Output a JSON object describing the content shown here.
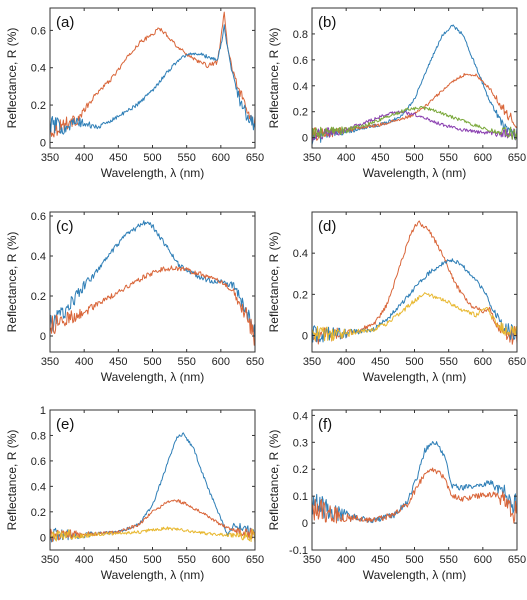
{
  "colors": {
    "blue": "#2f7fb7",
    "orange": "#d9663a",
    "purple": "#8a3fb0",
    "green": "#7aa83a",
    "yellow": "#e8b830"
  },
  "chart_data": [
    {
      "id": "a",
      "type": "line",
      "panel_label": "(a)",
      "xlabel": "Wavelength, λ (nm)",
      "ylabel": "Reflectance, R (%)",
      "xlim": [
        350,
        650
      ],
      "ylim": [
        -0.03,
        0.72
      ],
      "xticks": [
        350,
        400,
        450,
        500,
        550,
        600,
        650
      ],
      "yticks": [
        0,
        0.2,
        0.4,
        0.6
      ],
      "ytick_labels": [
        "0",
        "0.2",
        "0.4",
        "0.6"
      ],
      "noise_scale": 0.03,
      "series": [
        {
          "color": "orange",
          "x": [
            350,
            370,
            390,
            400,
            420,
            440,
            460,
            480,
            500,
            510,
            520,
            540,
            560,
            580,
            595,
            600,
            605,
            610,
            620,
            630,
            640,
            650
          ],
          "y": [
            0.06,
            0.1,
            0.12,
            0.17,
            0.27,
            0.34,
            0.44,
            0.53,
            0.58,
            0.61,
            0.58,
            0.5,
            0.45,
            0.41,
            0.43,
            0.55,
            0.7,
            0.5,
            0.35,
            0.25,
            0.15,
            0.1
          ]
        },
        {
          "color": "blue",
          "x": [
            350,
            370,
            390,
            400,
            420,
            440,
            460,
            480,
            500,
            520,
            540,
            560,
            580,
            595,
            600,
            605,
            610,
            620,
            630,
            640,
            650
          ],
          "y": [
            0.1,
            0.08,
            0.11,
            0.1,
            0.08,
            0.12,
            0.16,
            0.21,
            0.28,
            0.37,
            0.45,
            0.48,
            0.46,
            0.44,
            0.52,
            0.62,
            0.5,
            0.32,
            0.2,
            0.13,
            0.1
          ]
        }
      ]
    },
    {
      "id": "b",
      "type": "line",
      "panel_label": "(b)",
      "xlabel": "Wavelength, λ (nm)",
      "ylabel": "Reflectance, R (%)",
      "xlim": [
        350,
        650
      ],
      "ylim": [
        -0.08,
        1.0
      ],
      "xticks": [
        350,
        400,
        450,
        500,
        550,
        600,
        650
      ],
      "yticks": [
        0,
        0.2,
        0.4,
        0.6,
        0.8
      ],
      "ytick_labels": [
        "0",
        "0.2",
        "0.4",
        "0.6",
        "0.8"
      ],
      "noise_scale": 0.035,
      "series": [
        {
          "color": "blue",
          "x": [
            350,
            400,
            450,
            480,
            500,
            520,
            540,
            555,
            570,
            590,
            610,
            630,
            650
          ],
          "y": [
            0.0,
            0.05,
            0.1,
            0.16,
            0.3,
            0.55,
            0.78,
            0.87,
            0.8,
            0.55,
            0.28,
            0.1,
            0.03
          ]
        },
        {
          "color": "orange",
          "x": [
            350,
            400,
            450,
            480,
            500,
            520,
            540,
            560,
            575,
            590,
            610,
            630,
            650
          ],
          "y": [
            0.02,
            0.06,
            0.1,
            0.14,
            0.18,
            0.26,
            0.36,
            0.45,
            0.49,
            0.48,
            0.38,
            0.22,
            0.1
          ]
        },
        {
          "color": "purple",
          "x": [
            350,
            400,
            430,
            460,
            480,
            500,
            520,
            540,
            570,
            600,
            650
          ],
          "y": [
            0.02,
            0.06,
            0.12,
            0.18,
            0.2,
            0.18,
            0.14,
            0.1,
            0.06,
            0.04,
            0.02
          ]
        },
        {
          "color": "green",
          "x": [
            350,
            400,
            430,
            460,
            490,
            510,
            530,
            550,
            580,
            610,
            650
          ],
          "y": [
            0.03,
            0.06,
            0.1,
            0.16,
            0.22,
            0.23,
            0.21,
            0.17,
            0.11,
            0.06,
            0.03
          ]
        }
      ]
    },
    {
      "id": "c",
      "type": "line",
      "panel_label": "(c)",
      "xlabel": "Wavelength, λ (nm)",
      "ylabel": "Reflectance, R (%)",
      "xlim": [
        350,
        650
      ],
      "ylim": [
        -0.08,
        0.62
      ],
      "xticks": [
        350,
        400,
        450,
        500,
        550,
        600,
        650
      ],
      "yticks": [
        0,
        0.2,
        0.4,
        0.6
      ],
      "ytick_labels": [
        "0",
        "0.2",
        "0.4",
        "0.6"
      ],
      "noise_scale": 0.035,
      "series": [
        {
          "color": "blue",
          "x": [
            350,
            370,
            400,
            420,
            440,
            460,
            480,
            490,
            500,
            520,
            540,
            560,
            580,
            600,
            620,
            640,
            650
          ],
          "y": [
            0.05,
            0.12,
            0.25,
            0.33,
            0.42,
            0.5,
            0.55,
            0.57,
            0.55,
            0.45,
            0.35,
            0.31,
            0.28,
            0.27,
            0.25,
            0.1,
            0.0
          ]
        },
        {
          "color": "orange",
          "x": [
            350,
            370,
            400,
            430,
            460,
            490,
            510,
            530,
            550,
            570,
            600,
            620,
            640,
            650
          ],
          "y": [
            0.04,
            0.08,
            0.12,
            0.18,
            0.24,
            0.3,
            0.33,
            0.34,
            0.33,
            0.31,
            0.27,
            0.22,
            0.08,
            0.0
          ]
        }
      ]
    },
    {
      "id": "d",
      "type": "line",
      "panel_label": "(d)",
      "xlabel": "Wavelength, λ (nm)",
      "ylabel": "Reflectance, R (%)",
      "xlim": [
        350,
        650
      ],
      "ylim": [
        -0.08,
        0.6
      ],
      "xticks": [
        350,
        400,
        450,
        500,
        550,
        600,
        650
      ],
      "yticks": [
        0,
        0.2,
        0.4
      ],
      "ytick_labels": [
        "0",
        "0.2",
        "0.4"
      ],
      "noise_scale": 0.03,
      "series": [
        {
          "color": "orange",
          "x": [
            350,
            400,
            440,
            460,
            480,
            495,
            505,
            520,
            540,
            560,
            580,
            600,
            610,
            620,
            640,
            650
          ],
          "y": [
            0.0,
            0.01,
            0.05,
            0.15,
            0.35,
            0.5,
            0.55,
            0.52,
            0.4,
            0.25,
            0.15,
            0.12,
            0.13,
            0.05,
            0.0,
            0.0
          ]
        },
        {
          "color": "blue",
          "x": [
            350,
            400,
            440,
            460,
            480,
            500,
            520,
            540,
            555,
            570,
            590,
            605,
            615,
            630,
            650
          ],
          "y": [
            0.0,
            0.01,
            0.03,
            0.08,
            0.15,
            0.23,
            0.3,
            0.35,
            0.37,
            0.34,
            0.27,
            0.2,
            0.12,
            0.04,
            0.0
          ]
        },
        {
          "color": "yellow",
          "x": [
            350,
            400,
            440,
            460,
            480,
            500,
            515,
            530,
            550,
            570,
            590,
            605,
            615,
            630,
            650
          ],
          "y": [
            0.0,
            0.01,
            0.03,
            0.06,
            0.11,
            0.17,
            0.2,
            0.19,
            0.16,
            0.12,
            0.1,
            0.14,
            0.08,
            0.03,
            0.0
          ]
        }
      ]
    },
    {
      "id": "e",
      "type": "line",
      "panel_label": "(e)",
      "xlabel": "Wavelength, λ (nm)",
      "ylabel": "Reflectance, R (%)",
      "xlim": [
        350,
        650
      ],
      "ylim": [
        -0.1,
        1.0
      ],
      "xticks": [
        350,
        400,
        450,
        500,
        550,
        600,
        650
      ],
      "yticks": [
        0,
        0.2,
        0.4,
        0.6,
        0.8,
        1
      ],
      "ytick_labels": [
        "0",
        "0.2",
        "0.4",
        "0.6",
        "0.8",
        "1"
      ],
      "noise_scale": 0.035,
      "series": [
        {
          "color": "blue",
          "x": [
            350,
            400,
            450,
            480,
            500,
            520,
            535,
            545,
            560,
            580,
            600,
            610,
            620,
            640,
            650
          ],
          "y": [
            0.02,
            0.02,
            0.04,
            0.1,
            0.25,
            0.55,
            0.78,
            0.81,
            0.7,
            0.4,
            0.15,
            0.02,
            0.1,
            0.05,
            0.02
          ]
        },
        {
          "color": "orange",
          "x": [
            350,
            400,
            450,
            480,
            500,
            520,
            535,
            550,
            570,
            600,
            620,
            650
          ],
          "y": [
            0.02,
            0.02,
            0.04,
            0.1,
            0.2,
            0.27,
            0.29,
            0.26,
            0.2,
            0.1,
            0.05,
            0.02
          ]
        },
        {
          "color": "yellow",
          "x": [
            350,
            400,
            450,
            480,
            500,
            520,
            540,
            560,
            600,
            650
          ],
          "y": [
            0.02,
            0.02,
            0.03,
            0.04,
            0.06,
            0.07,
            0.06,
            0.04,
            0.02,
            0.01
          ]
        }
      ]
    },
    {
      "id": "f",
      "type": "line",
      "panel_label": "(f)",
      "xlabel": "Wavelength, λ (nm)",
      "ylabel": "Reflectance, R (%)",
      "xlim": [
        350,
        650
      ],
      "ylim": [
        -0.1,
        0.42
      ],
      "xticks": [
        350,
        400,
        450,
        500,
        550,
        600,
        650
      ],
      "yticks": [
        -0.1,
        0,
        0.1,
        0.2,
        0.3,
        0.4
      ],
      "ytick_labels": [
        "-0.1",
        "0",
        "0.1",
        "0.2",
        "0.3",
        "0.4"
      ],
      "noise_scale": 0.03,
      "series": [
        {
          "color": "blue",
          "x": [
            350,
            380,
            410,
            440,
            470,
            490,
            505,
            515,
            525,
            535,
            545,
            555,
            570,
            590,
            610,
            630,
            645,
            650
          ],
          "y": [
            0.08,
            0.04,
            0.02,
            0.01,
            0.03,
            0.08,
            0.18,
            0.27,
            0.3,
            0.29,
            0.24,
            0.14,
            0.13,
            0.14,
            0.15,
            0.12,
            0.05,
            0.08
          ]
        },
        {
          "color": "orange",
          "x": [
            350,
            380,
            410,
            440,
            470,
            490,
            505,
            515,
            525,
            535,
            545,
            555,
            570,
            590,
            610,
            630,
            645,
            650
          ],
          "y": [
            0.06,
            0.03,
            0.02,
            0.01,
            0.03,
            0.07,
            0.14,
            0.18,
            0.2,
            0.19,
            0.16,
            0.1,
            0.09,
            0.1,
            0.11,
            0.09,
            0.03,
            0.06
          ]
        }
      ]
    }
  ]
}
